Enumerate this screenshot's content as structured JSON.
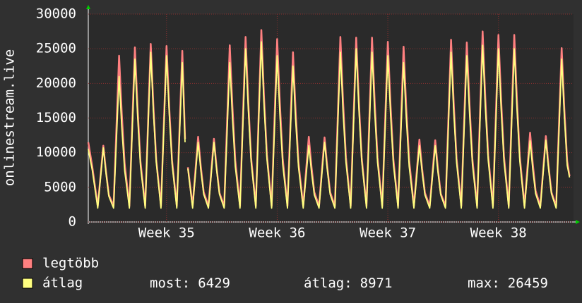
{
  "chart_data": {
    "type": "line",
    "ylabel": "onlinestream.live",
    "x": [
      0,
      0.25,
      0.6,
      0.95,
      1.12,
      1.3,
      1.6,
      1.95,
      2.12,
      2.3,
      2.6,
      2.95,
      3.12,
      3.3,
      3.6,
      3.95,
      4.12,
      4.3,
      4.6,
      4.95,
      5.12,
      5.3,
      5.6,
      5.95,
      6.12,
      6.2,
      6.3,
      6.6,
      6.95,
      7.12,
      7.3,
      7.6,
      7.95,
      8.12,
      8.3,
      8.6,
      8.95,
      9.12,
      9.3,
      9.6,
      9.95,
      10.12,
      10.3,
      10.6,
      10.95,
      11.12,
      11.3,
      11.6,
      11.95,
      12.12,
      12.3,
      12.6,
      12.95,
      13.12,
      13.3,
      13.6,
      13.95,
      14.12,
      14.3,
      14.6,
      14.95,
      15.12,
      15.3,
      15.6,
      15.95,
      16.12,
      16.3,
      16.6,
      16.95,
      17.12,
      17.3,
      17.6,
      17.95,
      18.12,
      18.3,
      18.6,
      18.95,
      19.12,
      19.3,
      19.6,
      19.95,
      20.12,
      20.3,
      20.6,
      20.95,
      21.12,
      21.3,
      21.6,
      21.95,
      22.12,
      22.3,
      22.6,
      22.95,
      23.12,
      23.3,
      23.6,
      23.95,
      24.12,
      24.3,
      24.6,
      24.95,
      25.12,
      25.3,
      25.6,
      25.95,
      26.12,
      26.3,
      26.6,
      26.95,
      27.12,
      27.3,
      27.6,
      27.95,
      28.12,
      28.3,
      28.6,
      28.95,
      29.12,
      29.3,
      29.6,
      29.95,
      30.12,
      30.3,
      30.45
    ],
    "series": [
      {
        "name": "legtöbb",
        "color": "#ff8080",
        "values": [
          11500,
          8000,
          2300,
          11000,
          7300,
          3900,
          2300,
          24000,
          15600,
          8400,
          2300,
          25200,
          16400,
          8800,
          2300,
          25700,
          16700,
          9000,
          2300,
          25400,
          16500,
          8900,
          2300,
          24700,
          12000,
          null,
          7900,
          2300,
          12300,
          8000,
          4300,
          2300,
          12000,
          7800,
          4200,
          2300,
          25500,
          16600,
          8900,
          2300,
          26700,
          17400,
          9300,
          2300,
          27700,
          18000,
          9700,
          2300,
          26400,
          17200,
          9200,
          2300,
          24500,
          15900,
          8600,
          2300,
          12300,
          8000,
          4300,
          2300,
          12200,
          7900,
          4300,
          2300,
          26700,
          17400,
          9300,
          2300,
          26600,
          17300,
          9300,
          2300,
          26600,
          17300,
          9300,
          2300,
          26000,
          16900,
          9100,
          2300,
          25300,
          16400,
          8900,
          2300,
          11900,
          7700,
          4200,
          2300,
          11800,
          7700,
          4100,
          2300,
          26300,
          17100,
          9200,
          2300,
          25900,
          16800,
          9100,
          2300,
          27500,
          17900,
          9600,
          2300,
          27000,
          17600,
          9500,
          2300,
          27000,
          17600,
          9500,
          2300,
          12900,
          8400,
          4500,
          2300,
          12400,
          8100,
          4300,
          2300,
          25100,
          16300,
          8800,
          6600
        ]
      },
      {
        "name": "átlag",
        "color": "#ffff80",
        "values": [
          10500,
          7500,
          2000,
          10700,
          7000,
          3700,
          2000,
          21000,
          13700,
          7400,
          2000,
          23500,
          15300,
          8200,
          2000,
          24500,
          15900,
          8600,
          2000,
          24000,
          15600,
          8400,
          2000,
          23000,
          11500,
          null,
          7700,
          2000,
          11500,
          7500,
          4000,
          2000,
          11500,
          7500,
          4000,
          2000,
          23000,
          15000,
          8000,
          2000,
          25000,
          16300,
          8800,
          2000,
          26000,
          16900,
          9100,
          2000,
          24000,
          15600,
          8400,
          2000,
          22500,
          14600,
          7900,
          2000,
          11000,
          7200,
          3900,
          2000,
          11500,
          7500,
          4000,
          2000,
          24500,
          15900,
          8600,
          2000,
          25000,
          16300,
          8800,
          2000,
          24500,
          15900,
          8600,
          2000,
          24000,
          15600,
          8400,
          2000,
          23000,
          15000,
          8000,
          2000,
          11000,
          7200,
          3900,
          2000,
          11000,
          7200,
          3900,
          2000,
          24500,
          15900,
          8600,
          2000,
          24000,
          15600,
          8400,
          2000,
          25500,
          16600,
          8900,
          2000,
          25000,
          16300,
          8800,
          2000,
          25000,
          16300,
          8800,
          2000,
          11700,
          7600,
          4100,
          2000,
          11800,
          7700,
          4100,
          2000,
          23500,
          15300,
          8200,
          6429
        ]
      }
    ],
    "xlim": [
      0,
      30.7
    ],
    "xticks": [
      {
        "value": 4.95,
        "label": "Week 35"
      },
      {
        "value": 11.95,
        "label": "Week 36"
      },
      {
        "value": 18.95,
        "label": "Week 37"
      },
      {
        "value": 25.95,
        "label": "Week 38"
      }
    ],
    "ylim": [
      0,
      30000
    ],
    "yticks": [
      0,
      5000,
      10000,
      15000,
      20000,
      25000,
      30000
    ],
    "grid": true,
    "stats": [
      {
        "label": "most:",
        "value": 6429
      },
      {
        "label": "átlag:",
        "value": 8971
      },
      {
        "label": "max:",
        "value": 26459
      }
    ]
  }
}
